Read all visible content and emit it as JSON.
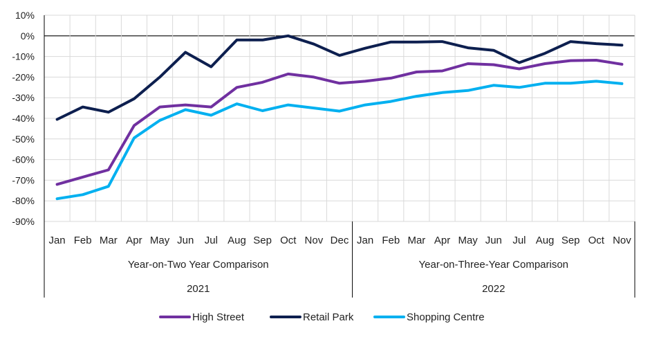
{
  "chart_data": {
    "type": "line",
    "y_axis": {
      "min": -90,
      "max": 10,
      "step": 10,
      "unit": "%",
      "tick_labels": [
        "10%",
        "0%",
        "-10%",
        "-20%",
        "-30%",
        "-40%",
        "-50%",
        "-60%",
        "-70%",
        "-80%",
        "-90%"
      ],
      "grid": true
    },
    "categories": [
      "Jan",
      "Feb",
      "Mar",
      "Apr",
      "May",
      "Jun",
      "Jul",
      "Aug",
      "Sep",
      "Oct",
      "Nov",
      "Dec",
      "Jan",
      "Feb",
      "Mar",
      "Apr",
      "May",
      "Jun",
      "Jul",
      "Aug",
      "Sep",
      "Oct",
      "Nov"
    ],
    "groups": [
      {
        "label": "Year-on-Two Year Comparison",
        "year": "2021",
        "count": 12
      },
      {
        "label": "Year-on-Three-Year Comparison",
        "year": "2022",
        "count": 11
      }
    ],
    "series": [
      {
        "name": "High Street",
        "color": "#7030a0",
        "values": [
          -72,
          -68.5,
          -65,
          -43.5,
          -34.5,
          -33.5,
          -34.5,
          -25,
          -22.5,
          -18.5,
          -20,
          -23,
          -22,
          -20.5,
          -17.5,
          -17,
          -13.5,
          -14,
          -16,
          -13.5,
          -12,
          -11.8,
          -13.8
        ]
      },
      {
        "name": "Retail Park",
        "color": "#0d1f4f",
        "values": [
          -40.5,
          -34.5,
          -37,
          -30.5,
          -20,
          -8,
          -15,
          -2,
          -2,
          0,
          -4,
          -9.5,
          -6,
          -3,
          -3,
          -2.8,
          -5.8,
          -7,
          -13,
          -8.5,
          -2.8,
          -3.8,
          -4.5
        ]
      },
      {
        "name": "Shopping Centre",
        "color": "#00b0f0",
        "values": [
          -79,
          -77,
          -73,
          -49.5,
          -41,
          -35.8,
          -38.5,
          -33,
          -36.3,
          -33.5,
          -35,
          -36.5,
          -33.5,
          -31.8,
          -29.3,
          -27.5,
          -26.5,
          -24,
          -25,
          -23,
          -23,
          -22,
          -23.2
        ]
      }
    ],
    "legend": {
      "position": "bottom"
    }
  }
}
